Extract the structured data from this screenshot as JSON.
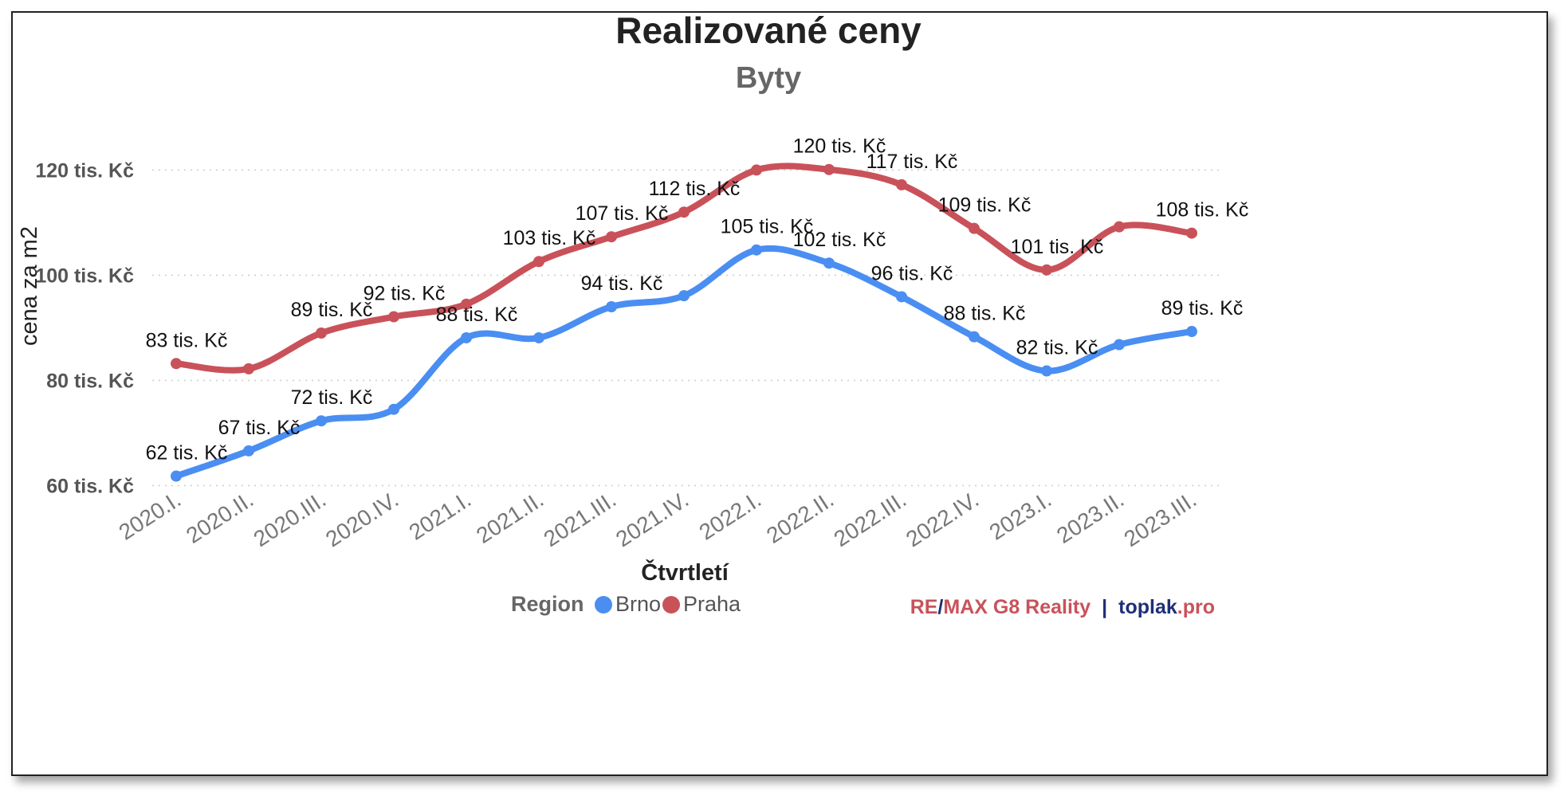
{
  "chart_data": {
    "type": "line",
    "title": "Realizované ceny",
    "subtitle": "Byty",
    "xlabel": "Čtvrtletí",
    "ylabel": "cena za m2",
    "categories": [
      "2020.I.",
      "2020.II.",
      "2020.III.",
      "2020.IV.",
      "2021.I.",
      "2021.II.",
      "2021.III.",
      "2021.IV.",
      "2022.I.",
      "2022.II.",
      "2022.III.",
      "2022.IV.",
      "2023.I.",
      "2023.II.",
      "2023.III."
    ],
    "yticks": [
      60,
      80,
      100,
      120
    ],
    "ytick_labels": [
      "60 tis. Kč",
      "80 tis. Kč",
      "100 tis. Kč",
      "120 tis. Kč"
    ],
    "ylim": [
      59,
      124
    ],
    "grid": true,
    "legend": {
      "title": "Region",
      "position": "bottom-center"
    },
    "series": [
      {
        "name": "Brno",
        "color": "#4a8ef2",
        "values": [
          61.8,
          66.6,
          72.3,
          74.5,
          88.1,
          88.1,
          94.0,
          96.1,
          104.8,
          102.3,
          95.9,
          88.3,
          81.8,
          86.8,
          89.3
        ],
        "labels": [
          "62 tis. Kč",
          "67 tis. Kč",
          "72 tis. Kč",
          "",
          "88 tis. Kč",
          "",
          "94 tis. Kč",
          "",
          "105 tis. Kč",
          "102 tis. Kč",
          "96 tis. Kč",
          "88 tis. Kč",
          "82 tis. Kč",
          "",
          "89 tis. Kč"
        ]
      },
      {
        "name": "Praha",
        "color": "#c9525a",
        "values": [
          83.2,
          82.2,
          89.0,
          92.1,
          94.5,
          102.6,
          107.3,
          112.0,
          120.0,
          120.1,
          117.2,
          108.9,
          101.0,
          109.2,
          108.0
        ],
        "labels": [
          "83 tis. Kč",
          "",
          "89 tis. Kč",
          "92 tis. Kč",
          "",
          "103 tis. Kč",
          "107 tis. Kč",
          "112 tis. Kč",
          "",
          "120 tis. Kč",
          "117 tis. Kč",
          "109 tis. Kč",
          "101 tis. Kč",
          "",
          "108 tis. Kč"
        ]
      }
    ]
  },
  "branding": {
    "remax_a": "RE",
    "slash": "/",
    "remax_b": "MAX G8 Reality",
    "separator": "|",
    "toplak": "toplak",
    "pro": ".pro",
    "colors": {
      "remax": "#c9525a",
      "toplak": "#1f2f78"
    }
  }
}
